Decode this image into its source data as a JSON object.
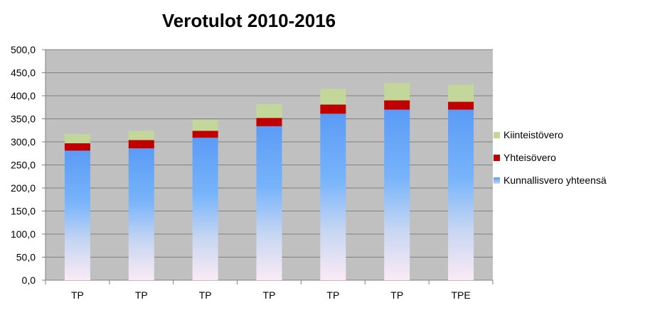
{
  "chart_data": {
    "type": "bar",
    "stacked": true,
    "title": "Verotulot 2010-2016",
    "xlabel": "",
    "ylabel": "",
    "categories": [
      "TP",
      "TP",
      "TP",
      "TP",
      "TP",
      "TP",
      "TPE"
    ],
    "ylim": [
      0,
      500
    ],
    "ytick_step": 50,
    "ytick_labels": [
      "0,0",
      "50,0",
      "100,0",
      "150,0",
      "200,0",
      "250,0",
      "300,0",
      "350,0",
      "400,0",
      "450,0",
      "500,0"
    ],
    "grid": true,
    "legend_position": "right",
    "series": [
      {
        "name": "Kunnallisvero yhteensä",
        "values": [
          281,
          286,
          309,
          334,
          361,
          370,
          370
        ],
        "color": "#5b9bf5"
      },
      {
        "name": "Yhteisövero",
        "values": [
          16,
          18,
          15,
          18,
          20,
          20,
          17
        ],
        "color": "#c00000"
      },
      {
        "name": "Kiinteistövero",
        "values": [
          20,
          20,
          24,
          30,
          34,
          38,
          37
        ],
        "color": "#c4d79b"
      }
    ],
    "plot_background": "#c0c0c0"
  }
}
